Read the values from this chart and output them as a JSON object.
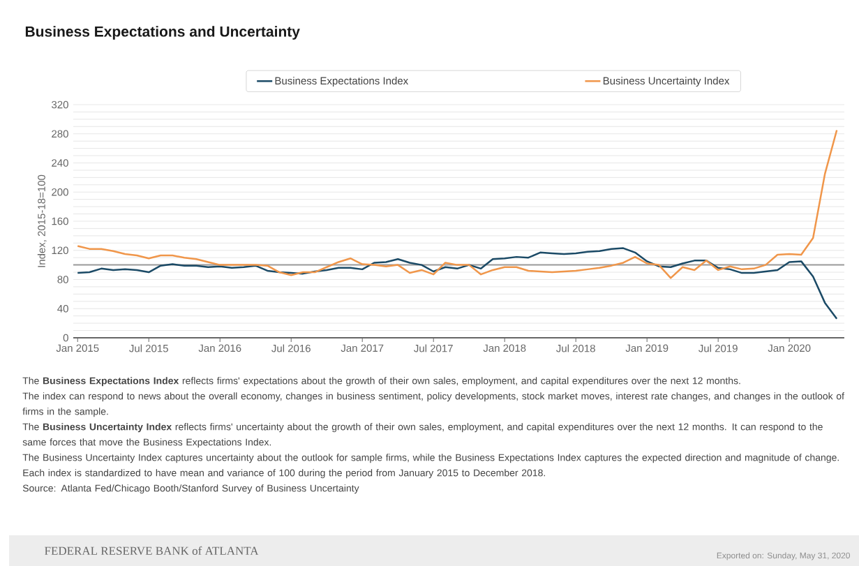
{
  "chart_data": {
    "type": "line",
    "title": "Business Expectations and Uncertainty",
    "ylabel": "Index, 2015-18=100",
    "x": [
      "2015-01",
      "2015-02",
      "2015-03",
      "2015-04",
      "2015-05",
      "2015-06",
      "2015-07",
      "2015-08",
      "2015-09",
      "2015-10",
      "2015-11",
      "2015-12",
      "2016-01",
      "2016-02",
      "2016-03",
      "2016-04",
      "2016-05",
      "2016-06",
      "2016-07",
      "2016-08",
      "2016-09",
      "2016-10",
      "2016-11",
      "2016-12",
      "2017-01",
      "2017-02",
      "2017-03",
      "2017-04",
      "2017-05",
      "2017-06",
      "2017-07",
      "2017-08",
      "2017-09",
      "2017-10",
      "2017-11",
      "2017-12",
      "2018-01",
      "2018-02",
      "2018-03",
      "2018-04",
      "2018-05",
      "2018-06",
      "2018-07",
      "2018-08",
      "2018-09",
      "2018-10",
      "2018-11",
      "2018-12",
      "2019-01",
      "2019-02",
      "2019-03",
      "2019-04",
      "2019-05",
      "2019-06",
      "2019-07",
      "2019-08",
      "2019-09",
      "2019-10",
      "2019-11",
      "2019-12",
      "2020-01",
      "2020-02",
      "2020-03",
      "2020-04",
      "2020-05"
    ],
    "series": [
      {
        "name": "Business Expectations Index",
        "color": "#1b4a66",
        "values": [
          89,
          90,
          95,
          93,
          94,
          93,
          90,
          99,
          101,
          99,
          99,
          97,
          98,
          96,
          97,
          99,
          92,
          90,
          89,
          88,
          91,
          93,
          96,
          96,
          94,
          103,
          104,
          108,
          103,
          100,
          91,
          97,
          95,
          100,
          95,
          108,
          109,
          111,
          110,
          117,
          116,
          115,
          116,
          118,
          119,
          122,
          123,
          117,
          105,
          98,
          97,
          102,
          106,
          106,
          96,
          94,
          89,
          89,
          91,
          93,
          104,
          105,
          84,
          48,
          26
        ]
      },
      {
        "name": "Business Uncertainty Index",
        "color": "#f0964a",
        "values": [
          126,
          122,
          122,
          119,
          115,
          113,
          109,
          113,
          113,
          110,
          108,
          104,
          100,
          100,
          100,
          100,
          99,
          90,
          86,
          90,
          90,
          97,
          104,
          109,
          101,
          100,
          98,
          100,
          89,
          93,
          87,
          103,
          100,
          100,
          87,
          93,
          97,
          97,
          92,
          91,
          90,
          91,
          92,
          94,
          96,
          99,
          103,
          111,
          102,
          100,
          82,
          97,
          93,
          106,
          93,
          98,
          94,
          95,
          100,
          114,
          115,
          114,
          137,
          225,
          285
        ]
      }
    ],
    "xlim": [
      "2014-12-20",
      "2020-05-20"
    ],
    "xticks": [
      {
        "value": "2015-01",
        "label": "Jan 2015"
      },
      {
        "value": "2015-07",
        "label": "Jul 2015"
      },
      {
        "value": "2016-01",
        "label": "Jan 2016"
      },
      {
        "value": "2016-07",
        "label": "Jul 2016"
      },
      {
        "value": "2017-01",
        "label": "Jan 2017"
      },
      {
        "value": "2017-07",
        "label": "Jul 2017"
      },
      {
        "value": "2018-01",
        "label": "Jan 2018"
      },
      {
        "value": "2018-07",
        "label": "Jul 2018"
      },
      {
        "value": "2019-01",
        "label": "Jan 2019"
      },
      {
        "value": "2019-07",
        "label": "Jul 2019"
      },
      {
        "value": "2020-01",
        "label": "Jan 2020"
      }
    ],
    "ylim": [
      0,
      320
    ],
    "yticks": [
      0,
      {
        "value": 10,
        "label": null
      },
      {
        "value": 20,
        "label": null
      },
      {
        "value": 30,
        "label": null
      },
      40,
      {
        "value": 50,
        "label": null
      },
      {
        "value": 60,
        "label": null
      },
      {
        "value": 70,
        "label": null
      },
      80,
      {
        "value": 90,
        "label": null
      },
      {
        "value": 100,
        "label": null
      },
      {
        "value": 110,
        "label": null
      },
      120,
      {
        "value": 130,
        "label": null
      },
      {
        "value": 140,
        "label": null
      },
      {
        "value": 150,
        "label": null
      },
      160,
      {
        "value": 170,
        "label": null
      },
      {
        "value": 180,
        "label": null
      },
      {
        "value": 190,
        "label": null
      },
      200,
      {
        "value": 210,
        "label": null
      },
      {
        "value": 220,
        "label": null
      },
      {
        "value": 230,
        "label": null
      },
      240,
      {
        "value": 250,
        "label": null
      },
      {
        "value": 260,
        "label": null
      },
      {
        "value": 270,
        "label": null
      },
      280,
      {
        "value": 290,
        "label": null
      },
      {
        "value": 300,
        "label": null
      },
      {
        "value": 310,
        "label": null
      },
      320
    ],
    "ref_lines": [
      {
        "axis": "y",
        "value": 100,
        "color": "#999999"
      }
    ],
    "grid": "y",
    "legend": "top",
    "marker": "none",
    "line_style": "solid",
    "annotations": [
      "The **Business Expectations Index** reflects firms' expectations about the growth of their own sales, employment, and capital expenditures over the next 12 months.",
      "The index can respond to news about the overall economy, changes in business sentiment, policy developments, stock market moves, interest rate changes, and changes in the outlook of firms in the sample.",
      "The **Business Uncertainty Index** reflects firms' uncertainty about the growth of their own sales, employment, and capital expenditures over the next 12 months. It can respond to the same forces that move the Business Expectations Index.",
      "The Business Uncertainty Index captures uncertainty about the outlook for sample firms, while the Business Expectations Index captures the expected direction and magnitude of change. Each index is standardized to have mean and variance of 100 during the period from January 2015 to December 2018.",
      "Source: Atlanta Fed/Chicago Booth/Stanford Survey of Business Uncertainty",
      "FEDERAL RESERVE BANK of ATLANTA",
      "Exported on: Sunday, May 31, 2020"
    ]
  }
}
